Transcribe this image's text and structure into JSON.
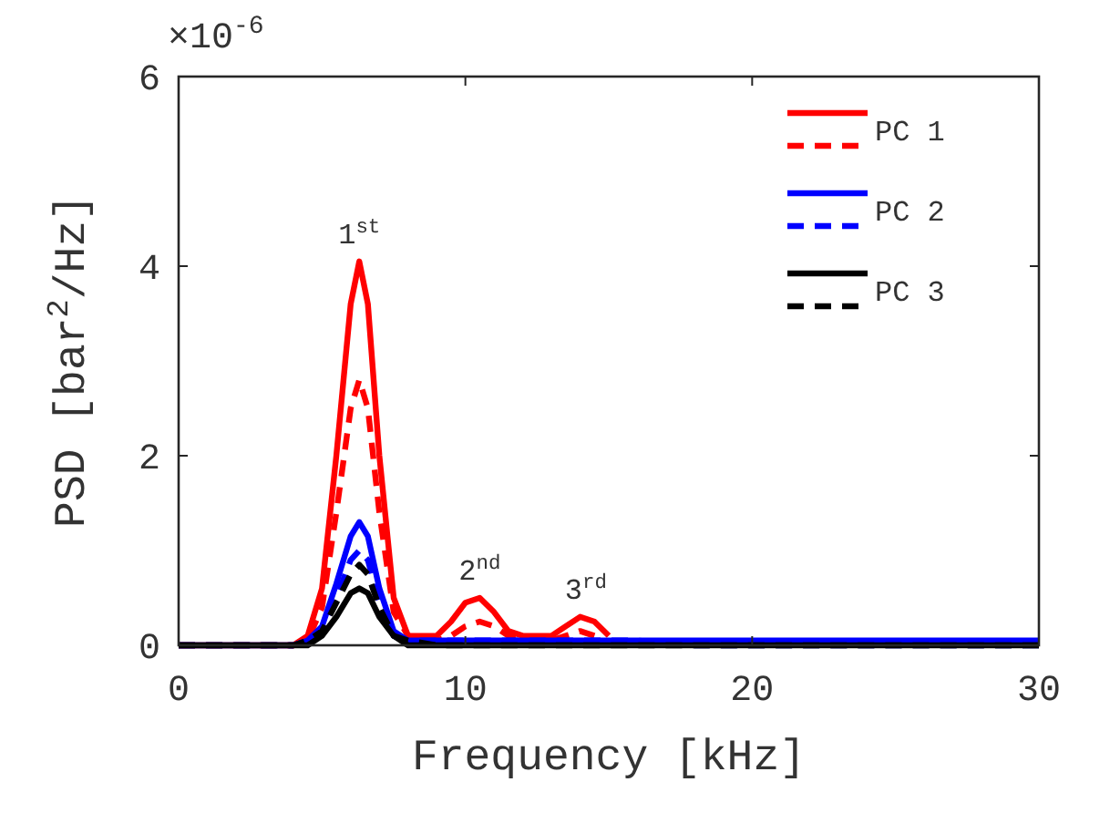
{
  "chart_data": {
    "type": "line",
    "xlabel": "Frequency [kHz]",
    "ylabel": "PSD [bar$^{2}$/Hz]",
    "xlim": [
      0,
      30
    ],
    "xticks": [
      0,
      10,
      20,
      30
    ],
    "ylim": [
      0,
      6
    ],
    "yticks": [
      0,
      2,
      4,
      6
    ],
    "x": [
      0,
      2,
      4,
      4.5,
      5,
      5.5,
      6,
      6.3,
      6.6,
      7,
      7.5,
      8,
      9,
      9.5,
      10,
      10.5,
      11,
      11.5,
      12,
      13,
      13.5,
      14,
      14.5,
      15,
      16,
      18,
      20,
      25,
      30
    ],
    "legend": "top right",
    "grid": false,
    "marker": "none",
    "series": [
      {
        "name": "PC 1",
        "color": "#ff0000",
        "line_style": "solid",
        "values": [
          0,
          0,
          0,
          0.1,
          0.6,
          2,
          3.6,
          4.05,
          3.6,
          2,
          0.5,
          0.1,
          0.1,
          0.25,
          0.45,
          0.5,
          0.35,
          0.15,
          0.1,
          0.1,
          0.2,
          0.3,
          0.25,
          0.1,
          null,
          null,
          null,
          null,
          null
        ]
      },
      {
        "color": "#ff0000",
        "line_style": "dashed",
        "values": [
          0,
          0,
          0,
          0.05,
          0.4,
          1.4,
          2.5,
          2.8,
          2.5,
          1.4,
          0.35,
          0.1,
          0.05,
          0.1,
          0.2,
          0.25,
          0.2,
          0.1,
          0.1,
          0.05,
          0.1,
          0.15,
          0.1,
          null,
          null,
          null,
          null,
          null,
          null
        ]
      },
      {
        "name": "PC 2",
        "color": "#0000ff",
        "line_style": "solid",
        "values": [
          0,
          0,
          0,
          0.05,
          0.2,
          0.65,
          1.15,
          1.3,
          1.15,
          0.6,
          0.15,
          0.05,
          0.05,
          0.05,
          0.05,
          0.05,
          0.05,
          0.05,
          0.05,
          0.05,
          0.05,
          0.05,
          0.05,
          0.05,
          0.05,
          0.05,
          0.05,
          0.05,
          0.05
        ]
      },
      {
        "color": "#0000ff",
        "line_style": "dashed",
        "values": [
          0,
          0,
          0,
          0.05,
          0.15,
          0.5,
          0.9,
          1,
          0.9,
          0.45,
          0.1,
          0.05,
          0.05,
          0.05,
          0.05,
          0.05,
          0.05,
          0.05,
          0.05,
          0.05,
          0.05,
          0.05,
          0.05,
          0.05,
          0.05,
          0,
          0,
          0,
          0
        ]
      },
      {
        "name": "PC 3",
        "color": "#000000",
        "line_style": "solid",
        "values": [
          0,
          0,
          0,
          0,
          0.1,
          0.3,
          0.55,
          0.6,
          0.55,
          0.3,
          0.1,
          0,
          0,
          0,
          0,
          0,
          0,
          0,
          0,
          0,
          0,
          0,
          0,
          0,
          0,
          0,
          0,
          0,
          0
        ]
      },
      {
        "color": "#000000",
        "line_style": "dashed",
        "values": [
          0,
          0,
          0,
          0.05,
          0.15,
          0.45,
          0.75,
          0.85,
          0.75,
          0.4,
          0.1,
          0.05,
          0,
          0,
          0,
          0,
          0,
          0,
          0,
          0,
          0,
          0,
          0,
          0,
          0,
          0,
          0,
          0,
          0
        ]
      }
    ],
    "annotations": [
      {
        "text": "1$^{st}$",
        "x": 6.3,
        "y": 4.05
      },
      {
        "text": "2$^{nd}$",
        "x": 10.5,
        "y": 0.5
      },
      {
        "text": "3$^{rd}$",
        "x": 14.2,
        "y": 0.3
      },
      "×10$^{-6}$"
    ]
  }
}
